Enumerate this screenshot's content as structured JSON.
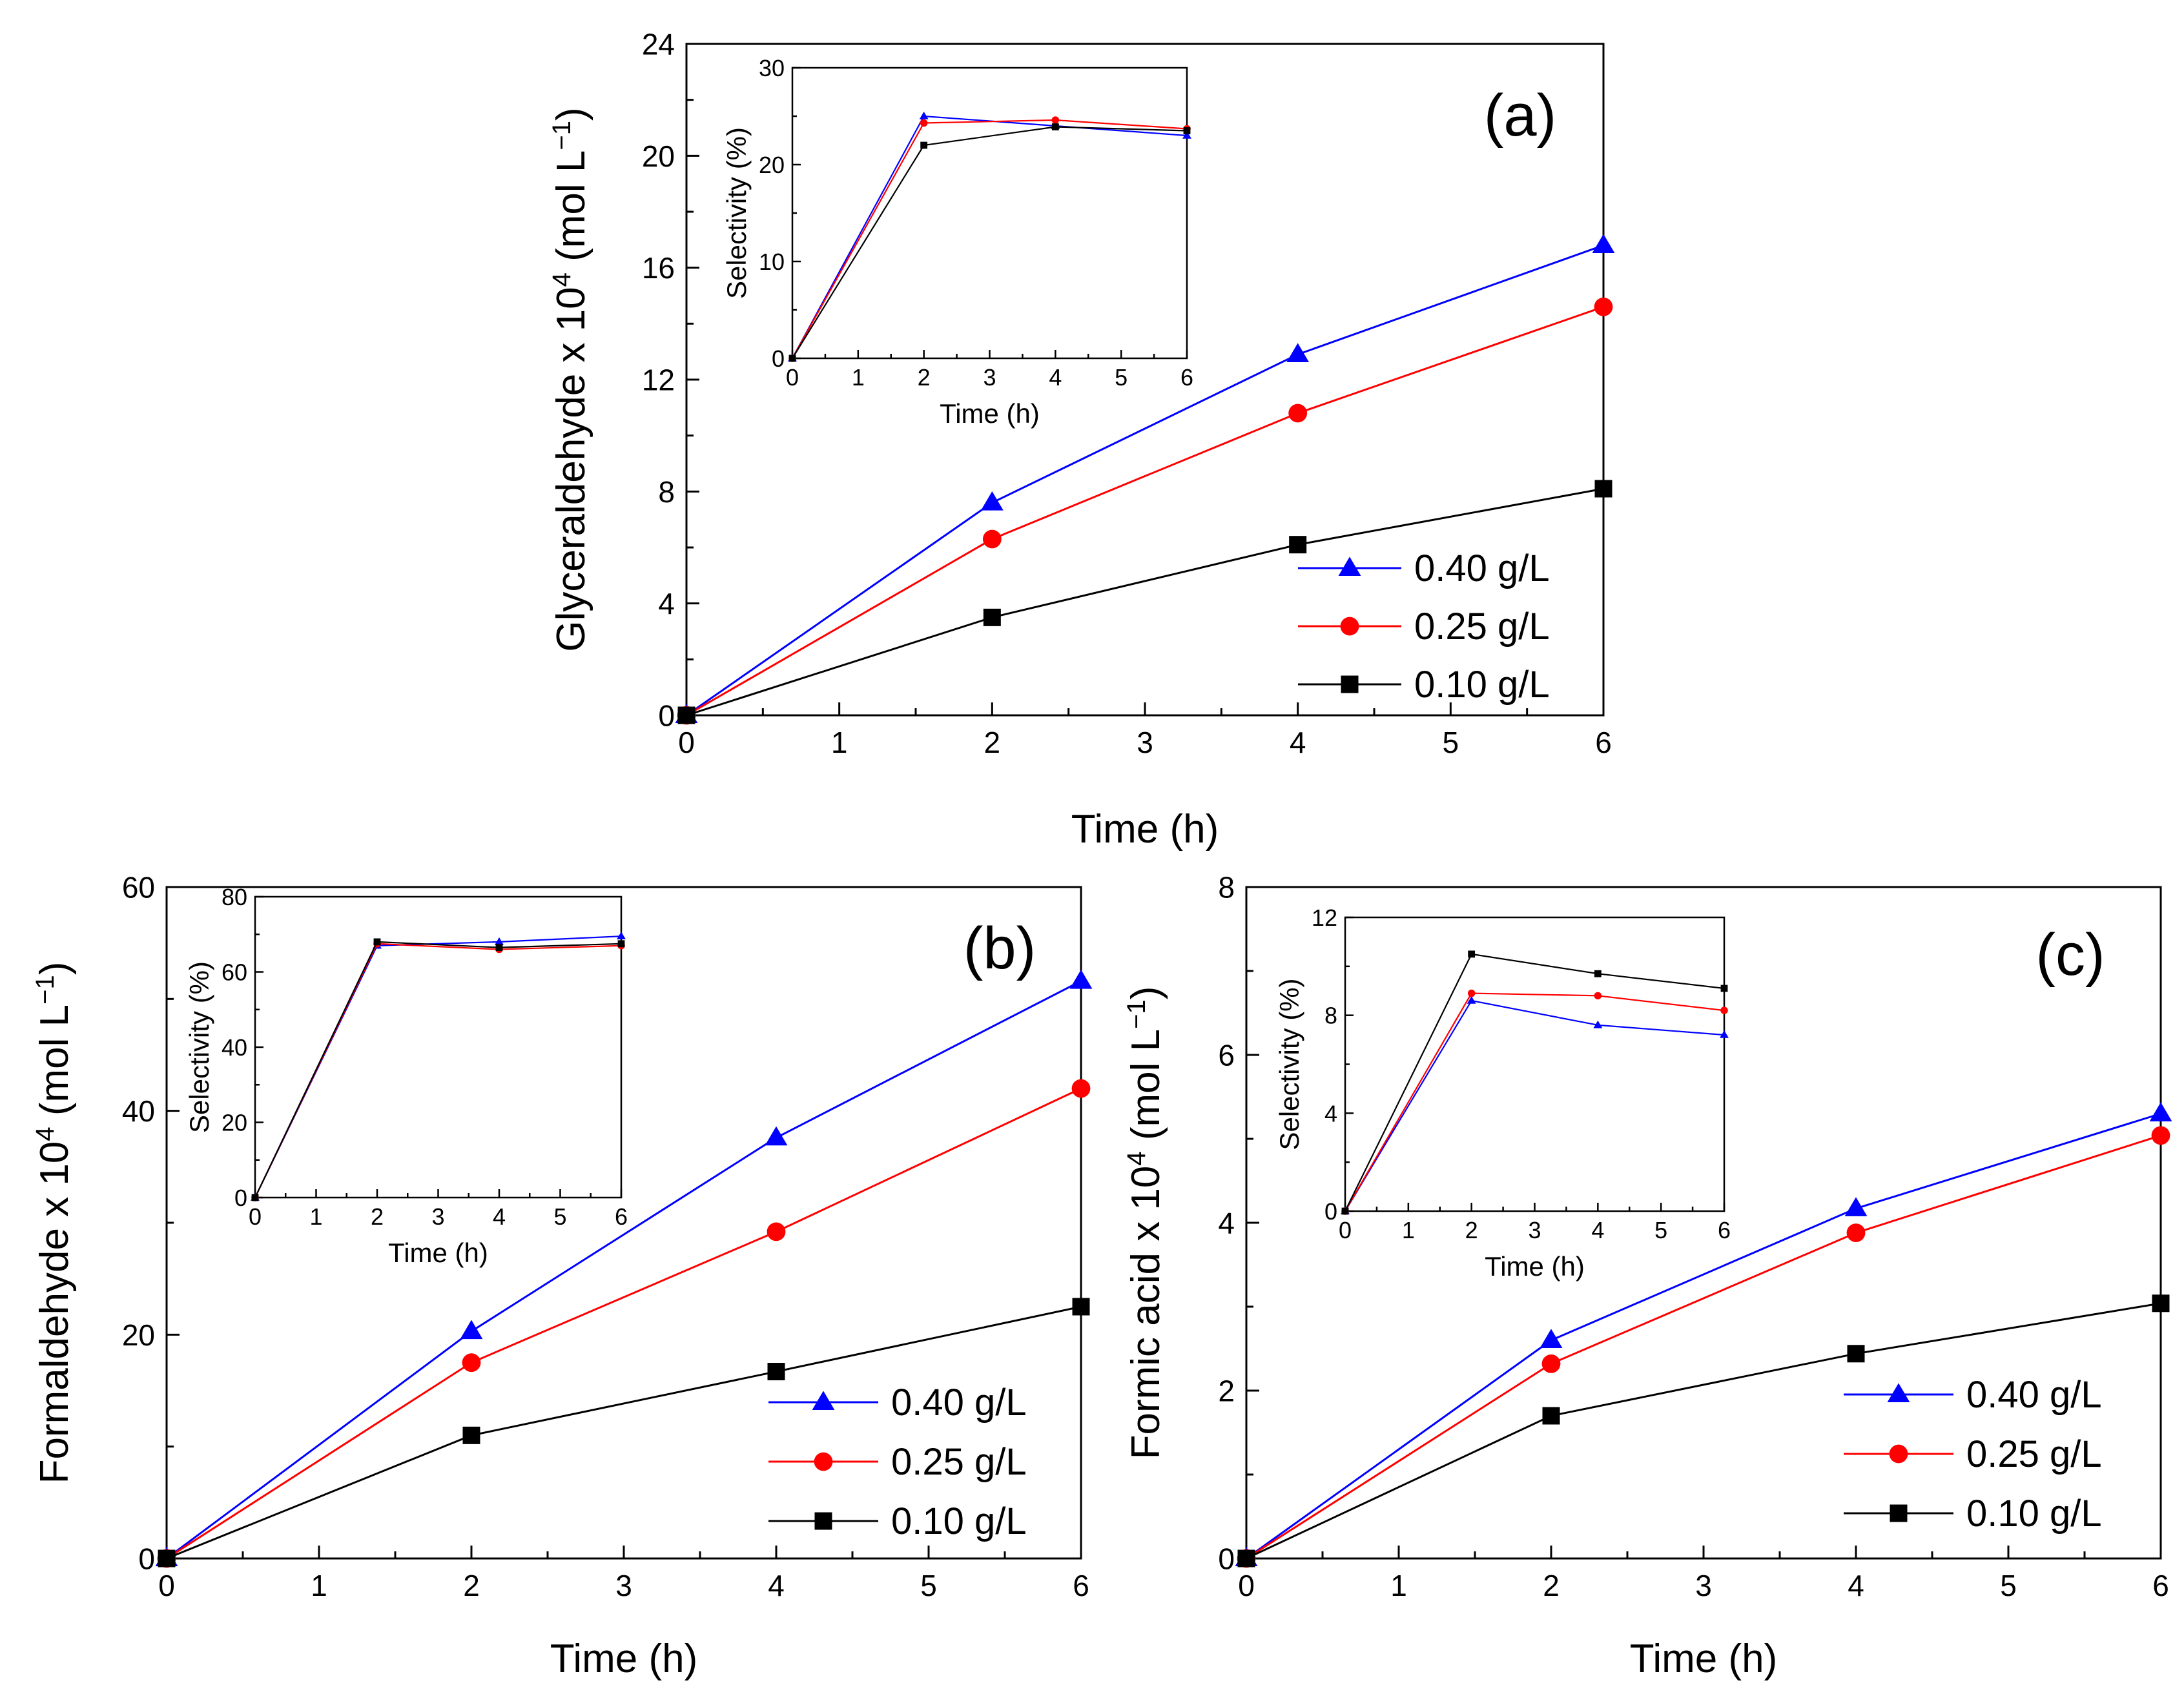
{
  "colors": {
    "blue": "#0000ff",
    "red": "#ff0000",
    "black": "#000000"
  },
  "chart_data": [
    {
      "id": "a",
      "type": "line",
      "panel_label": "(a)",
      "xlabel": "Time (h)",
      "ylabel_main": "Glyceraldehyde x 10",
      "ylabel_exp": "4",
      "ylabel_unit": " (mol L",
      "ylabel_unit_exp": "−1",
      "ylabel_close": ")",
      "xlim": [
        0,
        6
      ],
      "ylim": [
        0,
        24
      ],
      "xticks": [
        0,
        1,
        2,
        3,
        4,
        5,
        6
      ],
      "yticks": [
        0,
        4,
        8,
        12,
        16,
        20,
        24
      ],
      "x": [
        0,
        2,
        4,
        6
      ],
      "series": [
        {
          "name": "0.40 g/L",
          "color": "#0000ff",
          "marker": "triangle",
          "values": [
            0,
            7.6,
            12.9,
            16.8
          ]
        },
        {
          "name": "0.25 g/L",
          "color": "#ff0000",
          "marker": "circle",
          "values": [
            0,
            6.3,
            10.8,
            14.6
          ]
        },
        {
          "name": "0.10 g/L",
          "color": "#000000",
          "marker": "square",
          "values": [
            0,
            3.5,
            6.1,
            8.1
          ]
        }
      ],
      "inset": {
        "xlabel": "Time (h)",
        "ylabel": "Selectivity (%)",
        "xlim": [
          0,
          6
        ],
        "ylim": [
          0,
          30
        ],
        "xticks": [
          0,
          1,
          2,
          3,
          4,
          5,
          6
        ],
        "yticks": [
          0,
          10,
          20,
          30
        ],
        "x": [
          0,
          2,
          4,
          6
        ],
        "series": [
          {
            "name": "0.40 g/L",
            "color": "#0000ff",
            "marker": "triangle",
            "values": [
              0,
              25,
              24,
              23
            ]
          },
          {
            "name": "0.25 g/L",
            "color": "#ff0000",
            "marker": "circle",
            "values": [
              0,
              24.3,
              24.6,
              23.7
            ]
          },
          {
            "name": "0.10 g/L",
            "color": "#000000",
            "marker": "square",
            "values": [
              0,
              22,
              23.9,
              23.5
            ]
          }
        ]
      }
    },
    {
      "id": "b",
      "type": "line",
      "panel_label": "(b)",
      "xlabel": "Time (h)",
      "ylabel_main": "Formaldehyde  x 10",
      "ylabel_exp": "4",
      "ylabel_unit": " (mol L",
      "ylabel_unit_exp": "−1",
      "ylabel_close": ")",
      "xlim": [
        0,
        6
      ],
      "ylim": [
        0,
        60
      ],
      "xticks": [
        0,
        1,
        2,
        3,
        4,
        5,
        6
      ],
      "yticks": [
        0,
        20,
        40,
        60
      ],
      "x": [
        0,
        2,
        4,
        6
      ],
      "series": [
        {
          "name": "0.40 g/L",
          "color": "#0000ff",
          "marker": "triangle",
          "values": [
            0,
            20.3,
            37.6,
            51.6
          ]
        },
        {
          "name": "0.25 g/L",
          "color": "#ff0000",
          "marker": "circle",
          "values": [
            0,
            17.5,
            29.2,
            42
          ]
        },
        {
          "name": "0.10 g/L",
          "color": "#000000",
          "marker": "square",
          "values": [
            0,
            11,
            16.7,
            22.5
          ]
        }
      ],
      "inset": {
        "xlabel": "Time (h)",
        "ylabel": "Selectivity (%)",
        "xlim": [
          0,
          6
        ],
        "ylim": [
          0,
          80
        ],
        "xticks": [
          0,
          1,
          2,
          3,
          4,
          5,
          6
        ],
        "yticks": [
          0,
          20,
          40,
          60,
          80
        ],
        "x": [
          0,
          2,
          4,
          6
        ],
        "series": [
          {
            "name": "0.40 g/L",
            "color": "#0000ff",
            "marker": "triangle",
            "values": [
              0,
              67,
              68,
              69.5
            ]
          },
          {
            "name": "0.25 g/L",
            "color": "#ff0000",
            "marker": "circle",
            "values": [
              0,
              67.5,
              66,
              67
            ]
          },
          {
            "name": "0.10 g/L",
            "color": "#000000",
            "marker": "square",
            "values": [
              0,
              68,
              66.5,
              67.5
            ]
          }
        ]
      }
    },
    {
      "id": "c",
      "type": "line",
      "panel_label": "(c)",
      "xlabel": "Time (h)",
      "ylabel_main": "Formic acid x 10",
      "ylabel_exp": "4",
      "ylabel_unit": " (mol L",
      "ylabel_unit_exp": "−1",
      "ylabel_close": ")",
      "xlim": [
        0,
        6
      ],
      "ylim": [
        0,
        8
      ],
      "xticks": [
        0,
        1,
        2,
        3,
        4,
        5,
        6
      ],
      "yticks": [
        0,
        2,
        4,
        6,
        8
      ],
      "x": [
        0,
        2,
        4,
        6
      ],
      "series": [
        {
          "name": "0.40 g/L",
          "color": "#0000ff",
          "marker": "triangle",
          "values": [
            0,
            2.6,
            4.17,
            5.3
          ]
        },
        {
          "name": "0.25 g/L",
          "color": "#ff0000",
          "marker": "circle",
          "values": [
            0,
            2.32,
            3.88,
            5.04
          ]
        },
        {
          "name": "0.10 g/L",
          "color": "#000000",
          "marker": "square",
          "values": [
            0,
            1.7,
            2.44,
            3.04
          ]
        }
      ],
      "inset": {
        "xlabel": "Time (h)",
        "ylabel": "Selectivity (%)",
        "xlim": [
          0,
          6
        ],
        "ylim": [
          0,
          12
        ],
        "xticks": [
          0,
          1,
          2,
          3,
          4,
          5,
          6
        ],
        "yticks": [
          0,
          4,
          8,
          12
        ],
        "x": [
          0,
          2,
          4,
          6
        ],
        "series": [
          {
            "name": "0.40 g/L",
            "color": "#0000ff",
            "marker": "triangle",
            "values": [
              0,
              8.6,
              7.6,
              7.2
            ]
          },
          {
            "name": "0.25 g/L",
            "color": "#ff0000",
            "marker": "circle",
            "values": [
              0,
              8.9,
              8.8,
              8.2
            ]
          },
          {
            "name": "0.10 g/L",
            "color": "#000000",
            "marker": "square",
            "values": [
              0,
              10.5,
              9.7,
              9.1
            ]
          }
        ]
      }
    }
  ]
}
